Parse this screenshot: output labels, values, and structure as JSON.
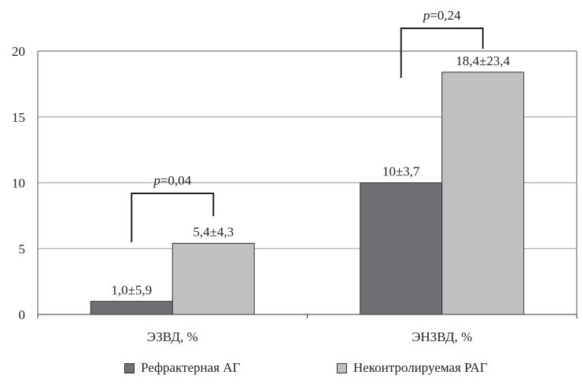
{
  "chart_data": {
    "type": "bar",
    "categories": [
      "ЭЗВД, %",
      "ЭНЗВД, %"
    ],
    "series": [
      {
        "name": "Рефрактерная АГ",
        "values": [
          1.0,
          10
        ],
        "labels": [
          "1,0±5,9",
          "10±3,7"
        ],
        "color": "#707074"
      },
      {
        "name": "Неконтролируемая РАГ",
        "values": [
          5.4,
          18.4
        ],
        "labels": [
          "5,4±4,3",
          "18,4±23,4"
        ],
        "color": "#c0c0c2"
      }
    ],
    "annotations": [
      "p=0,04",
      "p=0,24"
    ],
    "ylim": [
      0,
      20
    ],
    "yticks": [
      "0",
      "5",
      "10",
      "15",
      "20"
    ],
    "grid": true,
    "legend_position": "bottom"
  }
}
